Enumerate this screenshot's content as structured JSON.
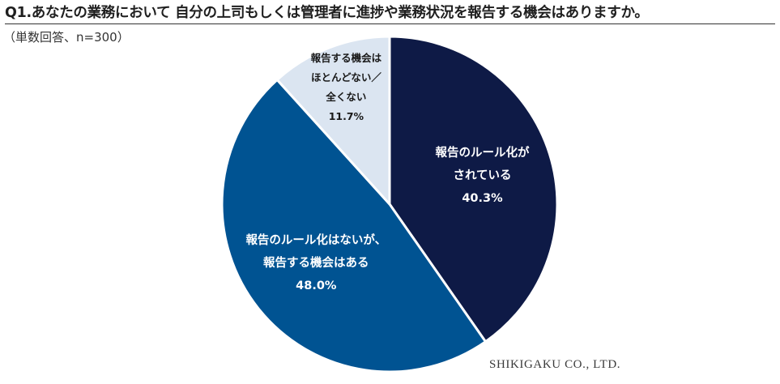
{
  "title": "Q1.あなたの業務において 自分の上司もしくは管理者に進捗や業務状況を報告する機会はありますか。",
  "subtitle": "（単数回答、n=300）",
  "credit": "SHIKIGAKU CO., LTD.",
  "chart_data": {
    "type": "pie",
    "start_angle_deg": 0,
    "direction": "clockwise",
    "slices": [
      {
        "label_lines": [
          "報告のルール化が",
          "されている"
        ],
        "percent_label": "40.3%",
        "value": 40.3,
        "color": "#0e1a46",
        "label_color": "#ffffff"
      },
      {
        "label_lines": [
          "報告のルール化はないが、",
          "報告する機会はある"
        ],
        "percent_label": "48.0%",
        "value": 48.0,
        "color": "#005392",
        "label_color": "#ffffff"
      },
      {
        "label_lines": [
          "報告する機会は",
          "ほとんどない／",
          "全くない"
        ],
        "percent_label": "11.7%",
        "value": 11.7,
        "color": "#dbe5f1",
        "label_color": "#1a1a1a"
      }
    ],
    "slice_border_color": "#ffffff"
  }
}
